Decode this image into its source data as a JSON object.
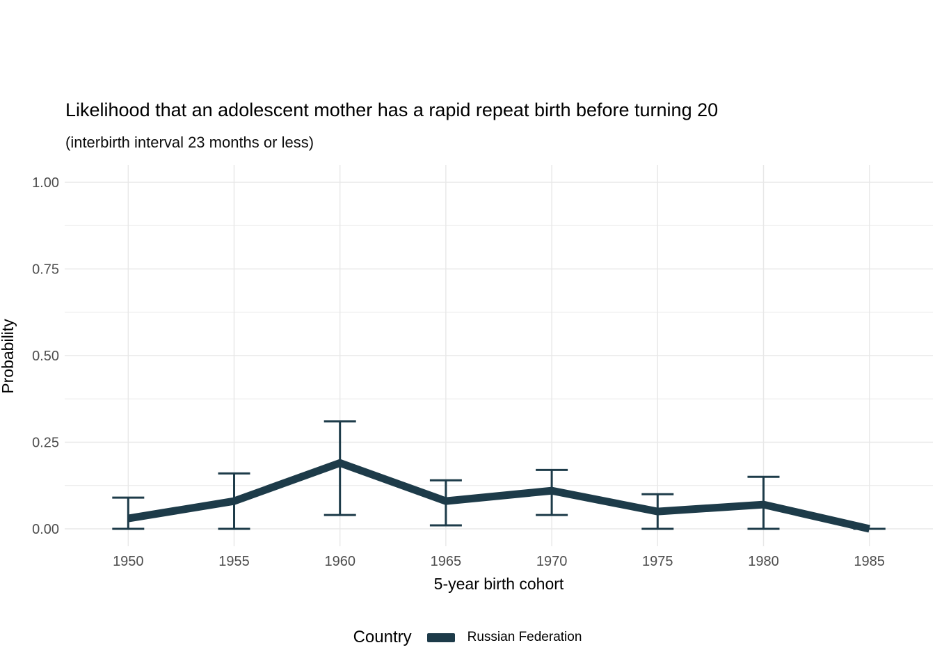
{
  "chart_data": {
    "type": "line",
    "title": "Likelihood that an adolescent mother has a rapid repeat birth before turning 20",
    "subtitle": "(interbirth interval 23 months or less)",
    "xlabel": "5-year birth cohort",
    "ylabel": "Probability",
    "x": [
      1950,
      1955,
      1960,
      1965,
      1970,
      1975,
      1980,
      1985
    ],
    "xtick_labels": [
      "1950",
      "1955",
      "1960",
      "1965",
      "1970",
      "1975",
      "1980",
      "1985"
    ],
    "series": [
      {
        "name": "Russian Federation",
        "color": "#1d3b49",
        "values": [
          0.03,
          0.08,
          0.19,
          0.08,
          0.11,
          0.05,
          0.07,
          0.0
        ],
        "ci_lower": [
          0.0,
          0.0,
          0.04,
          0.01,
          0.04,
          0.0,
          0.0,
          0.0
        ],
        "ci_upper": [
          0.09,
          0.16,
          0.31,
          0.14,
          0.17,
          0.1,
          0.15,
          0.0
        ]
      }
    ],
    "ylim": [
      0,
      1
    ],
    "xlim": [
      1947,
      1988
    ],
    "yticks": [
      0,
      0.25,
      0.5,
      0.75,
      1
    ],
    "ytick_labels": [
      "0.00",
      "0.25",
      "0.50",
      "0.75",
      "1.00"
    ],
    "yticks_minor": [
      0.125,
      0.375,
      0.625,
      0.875
    ],
    "grid": true,
    "error_bars": true,
    "legend": {
      "title": "Country",
      "position": "bottom"
    }
  },
  "style": {
    "line_color": "#1d3b49",
    "grid_color": "#e8e8e8",
    "tick_label_color": "#4d4d4d",
    "text_color": "#000000",
    "background": "#ffffff"
  }
}
